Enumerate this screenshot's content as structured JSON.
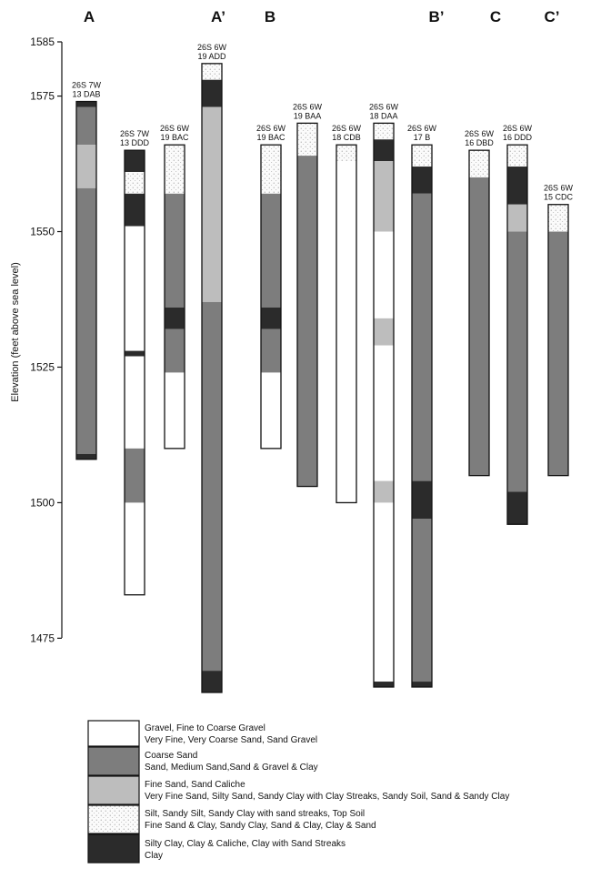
{
  "section_letters": [
    "A",
    "A’",
    "B",
    "B’",
    "C",
    "C’"
  ],
  "axis": {
    "title": "Elevation (feet above sea level)",
    "ticks": [
      1585,
      1575,
      1550,
      1525,
      1500,
      1475
    ],
    "range": [
      1465,
      1585
    ]
  },
  "colors": {
    "gravel": "#ffffff",
    "coarse_sand": "#7d7d7d",
    "fine_sand": "#bdbdbd",
    "silt": "#fbfbfb",
    "clay": "#2b2b2b",
    "outline": "#111111"
  },
  "wells": [
    {
      "label_top": "26S 7W",
      "label_bottom": "13 DAB",
      "layers": [
        {
          "material": "clay",
          "top": 1574,
          "bottom": 1573
        },
        {
          "material": "coarse_sand",
          "top": 1573,
          "bottom": 1566
        },
        {
          "material": "fine_sand",
          "top": 1566,
          "bottom": 1558
        },
        {
          "material": "coarse_sand",
          "top": 1558,
          "bottom": 1509
        },
        {
          "material": "clay",
          "top": 1509,
          "bottom": 1508
        }
      ]
    },
    {
      "label_top": "26S 7W",
      "label_bottom": "13 DDD",
      "layers": [
        {
          "material": "clay",
          "top": 1565,
          "bottom": 1561
        },
        {
          "material": "silt",
          "top": 1561,
          "bottom": 1557
        },
        {
          "material": "clay",
          "top": 1557,
          "bottom": 1551
        },
        {
          "material": "gravel",
          "top": 1551,
          "bottom": 1528
        },
        {
          "material": "clay",
          "top": 1528,
          "bottom": 1527
        },
        {
          "material": "gravel",
          "top": 1527,
          "bottom": 1510
        },
        {
          "material": "coarse_sand",
          "top": 1510,
          "bottom": 1500
        },
        {
          "material": "gravel",
          "top": 1500,
          "bottom": 1483
        }
      ]
    },
    {
      "label_top": "26S 6W",
      "label_bottom": "19 BAC",
      "layers": [
        {
          "material": "silt",
          "top": 1566,
          "bottom": 1557
        },
        {
          "material": "coarse_sand",
          "top": 1557,
          "bottom": 1536
        },
        {
          "material": "clay",
          "top": 1536,
          "bottom": 1532
        },
        {
          "material": "coarse_sand",
          "top": 1532,
          "bottom": 1524
        },
        {
          "material": "gravel",
          "top": 1524,
          "bottom": 1510
        }
      ]
    },
    {
      "label_top": "26S 6W",
      "label_bottom": "19 ADD",
      "layers": [
        {
          "material": "silt",
          "top": 1581,
          "bottom": 1578
        },
        {
          "material": "clay",
          "top": 1578,
          "bottom": 1573
        },
        {
          "material": "fine_sand",
          "top": 1573,
          "bottom": 1537
        },
        {
          "material": "coarse_sand",
          "top": 1537,
          "bottom": 1469
        },
        {
          "material": "clay",
          "top": 1469,
          "bottom": 1465
        }
      ]
    },
    {
      "label_top": "26S 6W",
      "label_bottom": "19 BAC",
      "layers": [
        {
          "material": "silt",
          "top": 1566,
          "bottom": 1557
        },
        {
          "material": "coarse_sand",
          "top": 1557,
          "bottom": 1536
        },
        {
          "material": "clay",
          "top": 1536,
          "bottom": 1532
        },
        {
          "material": "coarse_sand",
          "top": 1532,
          "bottom": 1524
        },
        {
          "material": "gravel",
          "top": 1524,
          "bottom": 1510
        }
      ]
    },
    {
      "label_top": "26S 6W",
      "label_bottom": "19 BAA",
      "layers": [
        {
          "material": "silt",
          "top": 1570,
          "bottom": 1564
        },
        {
          "material": "coarse_sand",
          "top": 1564,
          "bottom": 1503
        }
      ]
    },
    {
      "label_top": "26S 6W",
      "label_bottom": "18 CDB",
      "layers": [
        {
          "material": "silt",
          "top": 1566,
          "bottom": 1563
        },
        {
          "material": "gravel",
          "top": 1563,
          "bottom": 1500
        }
      ]
    },
    {
      "label_top": "26S 6W",
      "label_bottom": "18 DAA",
      "layers": [
        {
          "material": "silt",
          "top": 1570,
          "bottom": 1567
        },
        {
          "material": "clay",
          "top": 1567,
          "bottom": 1563
        },
        {
          "material": "fine_sand",
          "top": 1563,
          "bottom": 1550
        },
        {
          "material": "gravel",
          "top": 1550,
          "bottom": 1534
        },
        {
          "material": "fine_sand",
          "top": 1534,
          "bottom": 1529
        },
        {
          "material": "gravel",
          "top": 1529,
          "bottom": 1504
        },
        {
          "material": "fine_sand",
          "top": 1504,
          "bottom": 1500
        },
        {
          "material": "gravel",
          "top": 1500,
          "bottom": 1467
        },
        {
          "material": "clay",
          "top": 1467,
          "bottom": 1466
        }
      ]
    },
    {
      "label_top": "26S 6W",
      "label_bottom": "17 B",
      "layers": [
        {
          "material": "silt",
          "top": 1566,
          "bottom": 1562
        },
        {
          "material": "clay",
          "top": 1562,
          "bottom": 1557
        },
        {
          "material": "coarse_sand",
          "top": 1557,
          "bottom": 1504
        },
        {
          "material": "clay",
          "top": 1504,
          "bottom": 1497
        },
        {
          "material": "coarse_sand",
          "top": 1497,
          "bottom": 1467
        },
        {
          "material": "clay",
          "top": 1467,
          "bottom": 1466
        }
      ]
    },
    {
      "label_top": "26S 6W",
      "label_bottom": "16 DBD",
      "layers": [
        {
          "material": "silt",
          "top": 1565,
          "bottom": 1560
        },
        {
          "material": "coarse_sand",
          "top": 1560,
          "bottom": 1505
        }
      ]
    },
    {
      "label_top": "26S 6W",
      "label_bottom": "16 DDD",
      "layers": [
        {
          "material": "silt",
          "top": 1566,
          "bottom": 1562
        },
        {
          "material": "clay",
          "top": 1562,
          "bottom": 1555
        },
        {
          "material": "fine_sand",
          "top": 1555,
          "bottom": 1550
        },
        {
          "material": "coarse_sand",
          "top": 1550,
          "bottom": 1502
        },
        {
          "material": "clay",
          "top": 1502,
          "bottom": 1496
        }
      ]
    },
    {
      "label_top": "26S 6W",
      "label_bottom": "15 CDC",
      "layers": [
        {
          "material": "silt",
          "top": 1555,
          "bottom": 1550
        },
        {
          "material": "coarse_sand",
          "top": 1550,
          "bottom": 1505
        }
      ]
    }
  ],
  "legend": [
    {
      "material": "gravel",
      "line1": "Gravel, Fine to Coarse Gravel",
      "line2": "Very Fine, Very Coarse Sand, Sand Gravel"
    },
    {
      "material": "coarse_sand",
      "line1": "Coarse Sand",
      "line2": "Sand, Medium Sand,Sand & Gravel & Clay"
    },
    {
      "material": "fine_sand",
      "line1": "Fine Sand, Sand Caliche",
      "line2": "Very Fine Sand, Silty Sand, Sandy Clay with Clay Streaks, Sandy Soil, Sand & Sandy Clay"
    },
    {
      "material": "silt",
      "line1": "Silt, Sandy Silt, Sandy Clay with sand streaks, Top Soil",
      "line2": "Fine Sand & Clay, Sandy Clay, Sand & Clay, Clay & Sand"
    },
    {
      "material": "clay",
      "line1": "Silty Clay, Clay & Caliche, Clay with Sand Streaks",
      "line2": "Clay"
    }
  ]
}
